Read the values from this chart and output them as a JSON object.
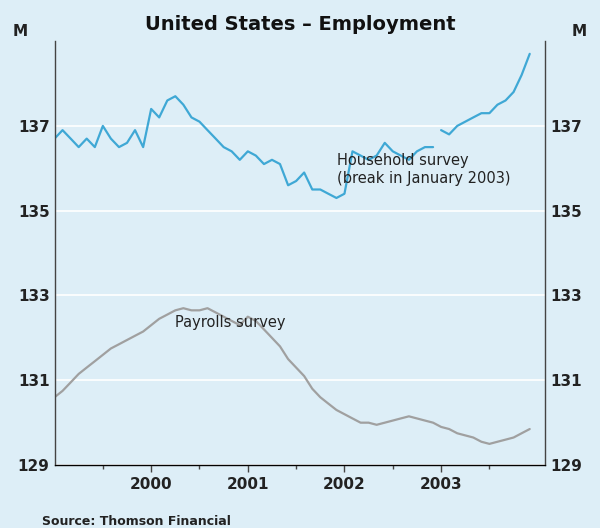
{
  "title": "United States – Employment",
  "source": "Source: Thomson Financial",
  "background_color": "#ddeef7",
  "plot_bg_color": "#ddeef7",
  "ylim": [
    129,
    139
  ],
  "yticks": [
    129,
    131,
    133,
    135,
    137
  ],
  "ylabel_left": "M",
  "ylabel_right": "M",
  "xtick_labels": [
    "2000",
    "2001",
    "2002",
    "2003"
  ],
  "household_color": "#3fa8d5",
  "payrolls_color": "#a0a0a0",
  "household_label": "Household survey",
  "household_sublabel": "(break in January 2003)",
  "payrolls_label": "Payrolls survey",
  "household_x1": [
    1999.0,
    1999.083,
    1999.167,
    1999.25,
    1999.333,
    1999.417,
    1999.5,
    1999.583,
    1999.667,
    1999.75,
    1999.833,
    1999.917,
    2000.0,
    2000.083,
    2000.167,
    2000.25,
    2000.333,
    2000.417,
    2000.5,
    2000.583,
    2000.667,
    2000.75,
    2000.833,
    2000.917,
    2001.0,
    2001.083,
    2001.167,
    2001.25,
    2001.333,
    2001.417,
    2001.5,
    2001.583,
    2001.667,
    2001.75,
    2001.833,
    2001.917,
    2002.0,
    2002.083,
    2002.167,
    2002.25,
    2002.333,
    2002.417,
    2002.5,
    2002.583,
    2002.667,
    2002.75,
    2002.833,
    2002.917
  ],
  "household_y1": [
    136.7,
    136.9,
    136.7,
    136.5,
    136.7,
    136.5,
    137.0,
    136.7,
    136.5,
    136.6,
    136.9,
    136.5,
    137.4,
    137.2,
    137.6,
    137.7,
    137.5,
    137.2,
    137.1,
    136.9,
    136.7,
    136.5,
    136.4,
    136.2,
    136.4,
    136.3,
    136.1,
    136.2,
    136.1,
    135.6,
    135.7,
    135.9,
    135.5,
    135.5,
    135.4,
    135.3,
    135.4,
    136.4,
    136.3,
    136.2,
    136.3,
    136.6,
    136.4,
    136.3,
    136.2,
    136.4,
    136.5,
    136.5
  ],
  "household_x2": [
    2003.0,
    2003.083,
    2003.167,
    2003.25,
    2003.333,
    2003.417,
    2003.5,
    2003.583,
    2003.667,
    2003.75,
    2003.833,
    2003.917
  ],
  "household_y2": [
    136.9,
    136.8,
    137.0,
    137.1,
    137.2,
    137.3,
    137.3,
    137.5,
    137.6,
    137.8,
    138.2,
    138.7
  ],
  "payrolls_x": [
    1999.0,
    1999.083,
    1999.167,
    1999.25,
    1999.333,
    1999.417,
    1999.5,
    1999.583,
    1999.667,
    1999.75,
    1999.833,
    1999.917,
    2000.0,
    2000.083,
    2000.167,
    2000.25,
    2000.333,
    2000.417,
    2000.5,
    2000.583,
    2000.667,
    2000.75,
    2000.833,
    2000.917,
    2001.0,
    2001.083,
    2001.167,
    2001.25,
    2001.333,
    2001.417,
    2001.5,
    2001.583,
    2001.667,
    2001.75,
    2001.833,
    2001.917,
    2002.0,
    2002.083,
    2002.167,
    2002.25,
    2002.333,
    2002.417,
    2002.5,
    2002.583,
    2002.667,
    2002.75,
    2002.833,
    2002.917,
    2003.0,
    2003.083,
    2003.167,
    2003.25,
    2003.333,
    2003.417,
    2003.5,
    2003.583,
    2003.667,
    2003.75,
    2003.833,
    2003.917
  ],
  "payrolls_y": [
    130.6,
    130.75,
    130.95,
    131.15,
    131.3,
    131.45,
    131.6,
    131.75,
    131.85,
    131.95,
    132.05,
    132.15,
    132.3,
    132.45,
    132.55,
    132.65,
    132.7,
    132.65,
    132.65,
    132.7,
    132.6,
    132.5,
    132.4,
    132.3,
    132.5,
    132.4,
    132.2,
    132.0,
    131.8,
    131.5,
    131.3,
    131.1,
    130.8,
    130.6,
    130.45,
    130.3,
    130.2,
    130.1,
    130.0,
    130.0,
    129.95,
    130.0,
    130.05,
    130.1,
    130.15,
    130.1,
    130.05,
    130.0,
    129.9,
    129.85,
    129.75,
    129.7,
    129.65,
    129.55,
    129.5,
    129.55,
    129.6,
    129.65,
    129.75,
    129.85
  ],
  "xlim": [
    1999.0,
    2004.08
  ],
  "grid_color": "#ffffff",
  "title_fontsize": 14,
  "label_fontsize": 11,
  "tick_fontsize": 11,
  "annotation_fontsize": 10.5
}
